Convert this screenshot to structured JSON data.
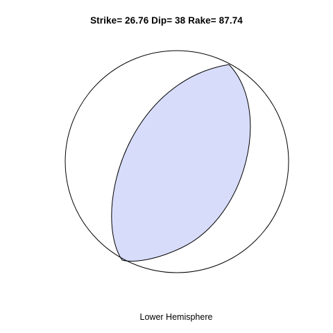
{
  "title": "Strike= 26.76 Dip= 38 Rake= 87.74",
  "caption": "Lower Hemisphere",
  "focal_mechanism": {
    "strike": 26.76,
    "dip": 38,
    "rake": 87.74,
    "projection": "Lower Hemisphere"
  },
  "colors": {
    "compressional_fill": "#d7dcfb",
    "outline": "#000000",
    "background": "#ffffff"
  }
}
